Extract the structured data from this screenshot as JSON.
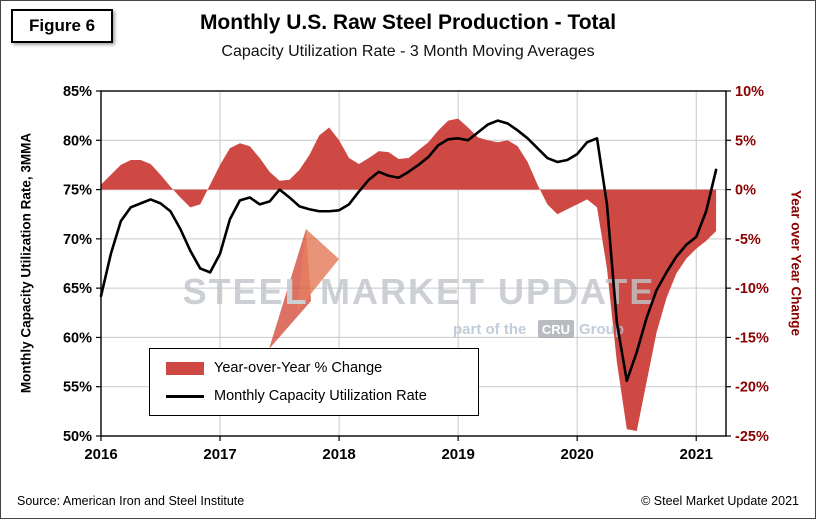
{
  "figure_label": "Figure 6",
  "title": "Monthly U.S. Raw Steel Production - Total",
  "subtitle": "Capacity Utilization Rate - 3 Month Moving Averages",
  "watermark": {
    "main": "STEEL MARKET UPDATE",
    "sub_prefix": "part of the ",
    "cru": "CRU",
    "sub_suffix": " Group"
  },
  "legend": [
    {
      "type": "area",
      "label": "Year-over-Year % Change",
      "color": "#cf4944"
    },
    {
      "type": "line",
      "label": "Monthly Capacity Utilization Rate",
      "color": "#000000"
    }
  ],
  "footer": {
    "source": "Source: American Iron and Steel Institute",
    "copyright": "© Steel Market Update 2021"
  },
  "colors": {
    "area": "#cf4944",
    "line": "#000000",
    "right_axis_text": "#8b0000",
    "grid": "#c9c9c9",
    "watermark_text": "#c0c5ca",
    "watermark_sub": "#b3c1d2",
    "cru_box": "#a7abb0",
    "swoosh_dark": "#cf3a28",
    "swoosh_light": "#df6238"
  },
  "chart_data": {
    "type": "line",
    "title": "Monthly U.S. Raw Steel Production - Total",
    "subtitle": "Capacity Utilization Rate - 3 Month Moving Averages",
    "grid": true,
    "legend_position": "inside-bottom-left",
    "x_tick_labels": [
      "2016",
      "2017",
      "2018",
      "2019",
      "2020",
      "2021"
    ],
    "left_axis": {
      "label": "Monthly Capacity Utilization Rate, 3MMA",
      "min": 50,
      "max": 85,
      "step": 5,
      "ticks": [
        "85%",
        "80%",
        "75%",
        "70%",
        "65%",
        "60%",
        "55%",
        "50%"
      ]
    },
    "right_axis": {
      "label": "Year over Year Change",
      "min": -25,
      "max": 10,
      "step": 5,
      "baseline": 0,
      "ticks": [
        "10%",
        "5%",
        "0%",
        "-5%",
        "-10%",
        "-15%",
        "-20%",
        "-25%"
      ]
    },
    "months": [
      "2016-01",
      "2016-02",
      "2016-03",
      "2016-04",
      "2016-05",
      "2016-06",
      "2016-07",
      "2016-08",
      "2016-09",
      "2016-10",
      "2016-11",
      "2016-12",
      "2017-01",
      "2017-02",
      "2017-03",
      "2017-04",
      "2017-05",
      "2017-06",
      "2017-07",
      "2017-08",
      "2017-09",
      "2017-10",
      "2017-11",
      "2017-12",
      "2018-01",
      "2018-02",
      "2018-03",
      "2018-04",
      "2018-05",
      "2018-06",
      "2018-07",
      "2018-08",
      "2018-09",
      "2018-10",
      "2018-11",
      "2018-12",
      "2019-01",
      "2019-02",
      "2019-03",
      "2019-04",
      "2019-05",
      "2019-06",
      "2019-07",
      "2019-08",
      "2019-09",
      "2019-10",
      "2019-11",
      "2019-12",
      "2020-01",
      "2020-02",
      "2020-03",
      "2020-04",
      "2020-05",
      "2020-06",
      "2020-07",
      "2020-08",
      "2020-09",
      "2020-10",
      "2020-11",
      "2020-12",
      "2021-01",
      "2021-02",
      "2021-03"
    ],
    "series": [
      {
        "name": "Year-over-Year % Change",
        "type": "area",
        "axis": "right",
        "color": "#cf4944",
        "values": [
          0.5,
          1.5,
          2.5,
          3.0,
          3.0,
          2.6,
          1.5,
          0.3,
          -0.8,
          -1.8,
          -1.5,
          0.5,
          2.5,
          4.2,
          4.7,
          4.4,
          3.2,
          1.8,
          0.9,
          1.0,
          2.0,
          3.5,
          5.5,
          6.3,
          5.0,
          3.2,
          2.6,
          3.2,
          3.9,
          3.8,
          3.1,
          3.2,
          4.0,
          4.8,
          6.0,
          7.0,
          7.2,
          6.3,
          5.3,
          5.0,
          4.8,
          5.0,
          4.4,
          2.8,
          0.5,
          -1.5,
          -2.5,
          -2.0,
          -1.5,
          -1.0,
          -1.8,
          -8.0,
          -17.5,
          -24.3,
          -24.5,
          -19.5,
          -14.5,
          -11.0,
          -8.5,
          -7.0,
          -6.0,
          -5.2,
          -4.2
        ]
      },
      {
        "name": "Monthly Capacity Utilization Rate",
        "type": "line",
        "axis": "left",
        "color": "#000000",
        "values": [
          64.2,
          68.5,
          71.8,
          73.2,
          73.6,
          74.0,
          73.6,
          72.8,
          71.0,
          68.8,
          67.0,
          66.6,
          68.5,
          72.0,
          73.9,
          74.2,
          73.5,
          73.8,
          75.0,
          74.2,
          73.3,
          73.0,
          72.8,
          72.8,
          72.9,
          73.5,
          74.8,
          76.0,
          76.8,
          76.4,
          76.2,
          76.8,
          77.5,
          78.3,
          79.5,
          80.1,
          80.2,
          80.0,
          80.8,
          81.6,
          82.0,
          81.7,
          81.0,
          80.2,
          79.2,
          78.2,
          77.8,
          78.0,
          78.6,
          79.8,
          80.2,
          73.5,
          61.5,
          55.6,
          58.5,
          62.0,
          64.8,
          66.6,
          68.2,
          69.4,
          70.2,
          72.8,
          77.0
        ]
      }
    ]
  }
}
